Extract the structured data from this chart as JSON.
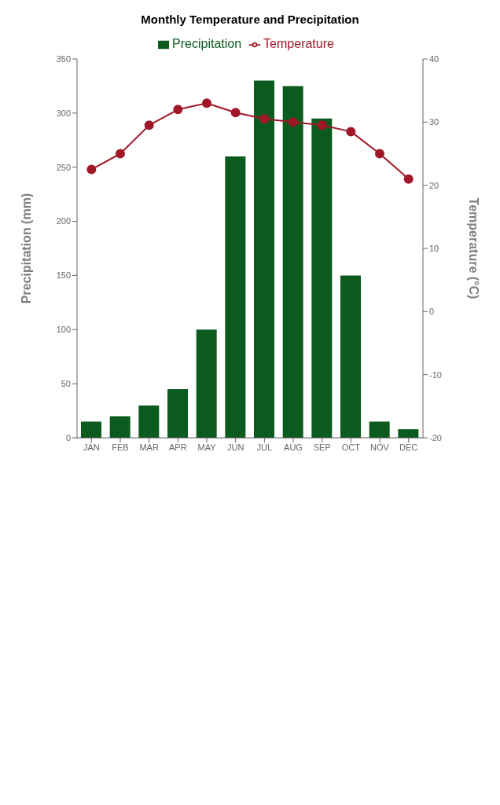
{
  "chart_data": {
    "type": "bar",
    "title": "Monthly Temperature and Precipitation",
    "ylabel": "Precipitation (mm)",
    "y2label": "Temperature (°C)",
    "categories": [
      "JAN",
      "FEB",
      "MAR",
      "APR",
      "MAY",
      "JUN",
      "JUL",
      "AUG",
      "SEP",
      "OCT",
      "NOV",
      "DEC"
    ],
    "series": [
      {
        "name": "Precipitation",
        "color": "#0b5a1e",
        "values": [
          15,
          20,
          30,
          45,
          100,
          260,
          330,
          325,
          295,
          150,
          15,
          8
        ]
      },
      {
        "name": "Temperature",
        "type": "line",
        "axis": "y2",
        "color": "#a01828",
        "values": [
          22.5,
          25,
          29.5,
          32,
          33,
          31.5,
          30.5,
          30,
          29.5,
          28.5,
          25,
          21
        ]
      }
    ],
    "ylim": [
      0,
      350
    ],
    "yticks": [
      0,
      50,
      100,
      150,
      200,
      250,
      300,
      350
    ],
    "y2lim": [
      -20,
      40
    ],
    "y2ticks": [
      -20,
      -10,
      0,
      10,
      20,
      30,
      40
    ],
    "legend": "top",
    "marker": "circle"
  }
}
